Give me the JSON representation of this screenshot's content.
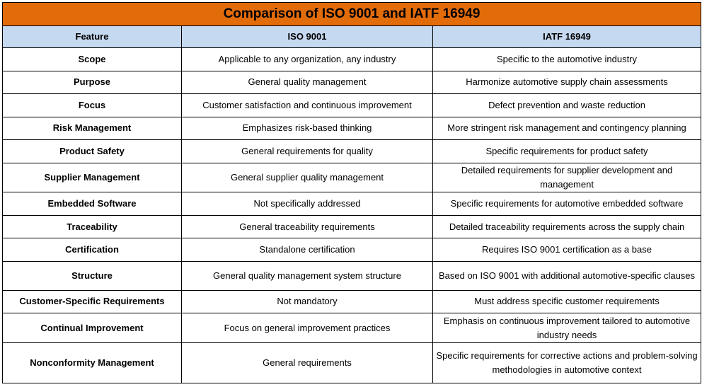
{
  "title": "Comparison of ISO 9001 and IATF 16949",
  "colors": {
    "title_bg": "#e36c0a",
    "header_bg": "#c5d9f1",
    "border": "#000000"
  },
  "headers": [
    "Feature",
    "ISO 9001",
    "IATF 16949"
  ],
  "rows": [
    [
      "Scope",
      "Applicable to any organization, any industry",
      "Specific to the automotive industry"
    ],
    [
      "Purpose",
      "General quality management",
      "Harmonize automotive supply chain assessments"
    ],
    [
      "Focus",
      "Customer satisfaction and continuous improvement",
      "Defect prevention and waste reduction"
    ],
    [
      "Risk Management",
      "Emphasizes risk-based thinking",
      "More stringent risk management and contingency planning"
    ],
    [
      "Product Safety",
      "General requirements for quality",
      "Specific requirements for product safety"
    ],
    [
      "Supplier Management",
      "General supplier quality management",
      "Detailed requirements for supplier development and management"
    ],
    [
      "Embedded Software",
      "Not specifically addressed",
      "Specific requirements for automotive embedded software"
    ],
    [
      "Traceability",
      "General traceability requirements",
      "Detailed traceability requirements across the supply chain"
    ],
    [
      "Certification",
      "Standalone certification",
      "Requires ISO 9001 certification as a base"
    ],
    [
      "Structure",
      "General quality management system structure",
      "Based on ISO 9001 with additional automotive-specific clauses"
    ],
    [
      "Customer-Specific Requirements",
      "Not mandatory",
      "Must address specific customer requirements"
    ],
    [
      "Continual Improvement",
      "Focus on general improvement practices",
      "Emphasis on continuous improvement tailored to automotive industry needs"
    ],
    [
      "Nonconformity Management",
      "General requirements",
      "Specific requirements for corrective actions and problem-solving methodologies in automotive context"
    ]
  ]
}
